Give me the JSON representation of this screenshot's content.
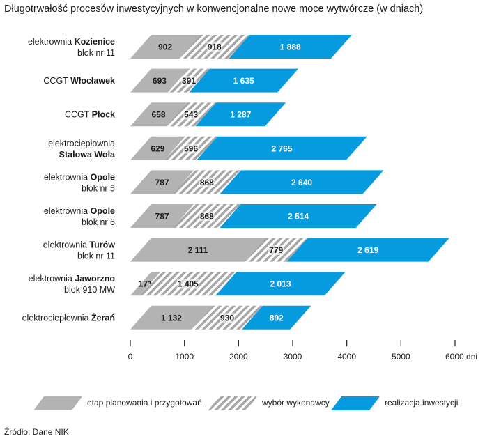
{
  "title": "Długotrwałość procesów inwestycyjnych w konwencjonalne nowe moce wytwórcze (w dniach)",
  "source": "Źródło: Dane NIK",
  "colors": {
    "planning": "#b3b3b3",
    "selection_base": "#ffffff",
    "selection_stripe": "#a6a6a6",
    "realization": "#069bdf",
    "text_dark": "#1a1a1a",
    "text_light": "#ffffff"
  },
  "legend": {
    "planning": "etap planowania i przygotowań",
    "selection": "wybór wykonawcy",
    "realization": "realizacja inwestycji"
  },
  "chart_data": {
    "type": "bar",
    "orientation": "horizontal",
    "stacked": true,
    "categories": [
      {
        "line1": "elektrownia ",
        "bold": "Kozienice",
        "line2": "blok nr 11"
      },
      {
        "line1": "CCGT ",
        "bold": "Włocławek",
        "line2": ""
      },
      {
        "line1": "CCGT ",
        "bold": "Płock",
        "line2": ""
      },
      {
        "line1": "elektrociepłownia",
        "bold": "",
        "line2": "Stalowa Wola",
        "line2_bold": true
      },
      {
        "line1": "elektrownia ",
        "bold": "Opole",
        "line2": "blok nr 5"
      },
      {
        "line1": "elektrownia ",
        "bold": "Opole",
        "line2": "blok nr 6"
      },
      {
        "line1": "elektrownia ",
        "bold": "Turów",
        "line2": "blok nr 11"
      },
      {
        "line1": "elektrownia ",
        "bold": "Jaworzno",
        "line2": "blok 910 MW"
      },
      {
        "line1": "elektrociepłownia ",
        "bold": "Żerań",
        "line2": ""
      }
    ],
    "series": [
      {
        "name": "etap planowania i przygotowań",
        "values": [
          902,
          693,
          658,
          629,
          787,
          787,
          2111,
          171,
          1132
        ],
        "labels": [
          "902",
          "693",
          "658",
          "629",
          "787",
          "787",
          "2 111",
          "171",
          "1 132"
        ]
      },
      {
        "name": "wybór wykonawcy",
        "values": [
          918,
          391,
          543,
          596,
          868,
          868,
          779,
          1405,
          930
        ],
        "labels": [
          "918",
          "391",
          "543",
          "596",
          "868",
          "868",
          "779",
          "1 405",
          "930"
        ]
      },
      {
        "name": "realizacja inwestycji",
        "values": [
          1888,
          1635,
          1287,
          2765,
          2640,
          2514,
          2619,
          2013,
          892
        ],
        "labels": [
          "1 888",
          "1 635",
          "1 287",
          "2 765",
          "2 640",
          "2 514",
          "2 619",
          "2 013",
          "892"
        ]
      }
    ],
    "xlim": [
      0,
      6000
    ],
    "xticks": [
      0,
      1000,
      2000,
      3000,
      4000,
      5000,
      6000
    ],
    "xtick_labels": [
      "0",
      "1000",
      "2000",
      "3000",
      "4000",
      "5000",
      "6000 dni"
    ],
    "grid": false,
    "legend_position": "bottom"
  }
}
